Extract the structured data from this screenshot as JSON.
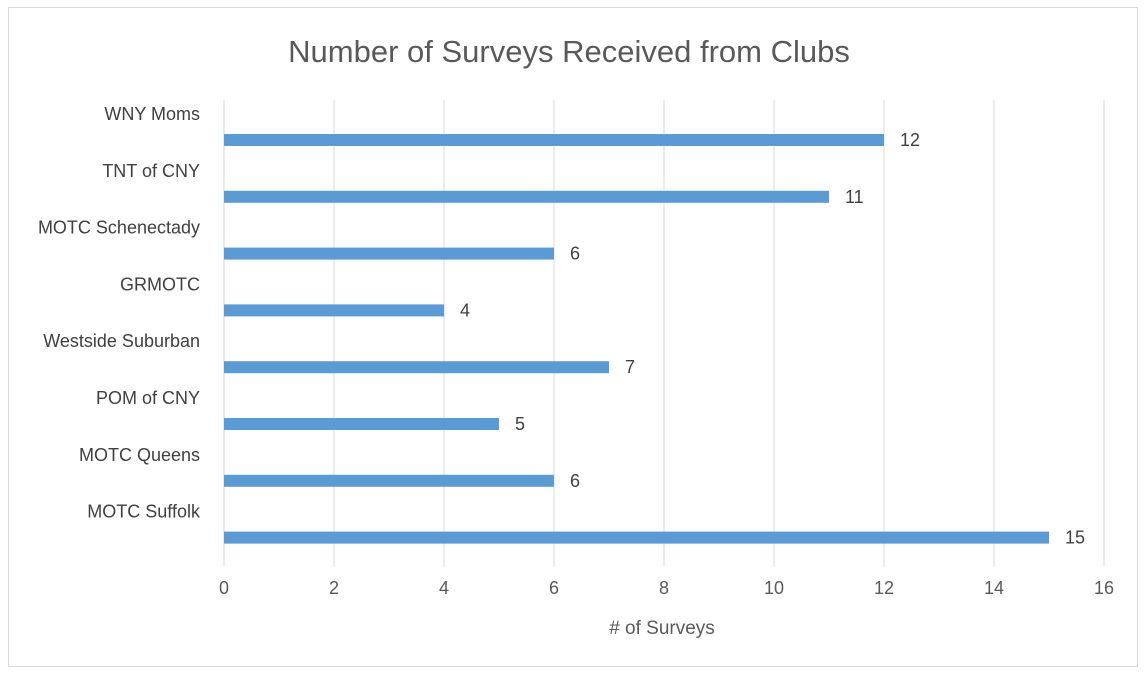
{
  "chart_data": {
    "type": "bar",
    "orientation": "horizontal",
    "title": "Number of Surveys Received from Clubs",
    "xlabel": "# of Surveys",
    "ylabel": "",
    "categories": [
      "WNY Moms",
      "TNT of CNY",
      "MOTC Schenectady",
      "GRMOTC",
      "Westside Suburban",
      "POM of CNY",
      "MOTC Queens",
      "MOTC Suffolk"
    ],
    "values": [
      12,
      11,
      6,
      4,
      7,
      5,
      6,
      15
    ],
    "xlim": [
      0,
      16
    ],
    "xticks": [
      0,
      2,
      4,
      6,
      8,
      10,
      12,
      14,
      16
    ],
    "grid": true,
    "legend": "none",
    "data_labels": true,
    "bar_color": "#5b9bd5"
  }
}
